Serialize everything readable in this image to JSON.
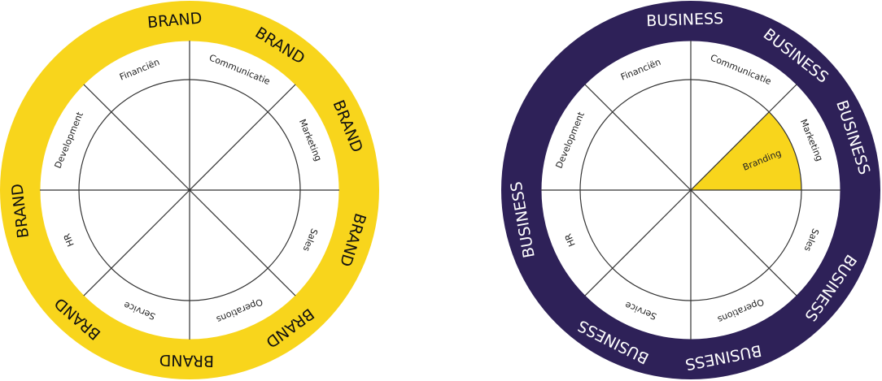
{
  "wheels": [
    {
      "ring_labels": [
        "BRAND",
        "BRAND",
        "BRAND",
        "BRAND",
        "BRAND",
        "BRAND",
        "BRAND",
        "BRAND"
      ],
      "segments": [
        "Communicatie",
        "Marketing",
        "Sales",
        "Operations",
        "Service",
        "HR",
        "Development",
        "Financiën"
      ]
    },
    {
      "ring_labels": [
        "BUSINESS",
        "BUSINESS",
        "BUSINESS",
        "BUSINESS",
        "BUSINESS",
        "BUSINESS",
        "BUSINESS"
      ],
      "segments": [
        "Communicatie",
        "Marketing",
        "Sales",
        "Operations",
        "Service",
        "HR",
        "Development",
        "Financiën"
      ],
      "highlight": "Branding"
    }
  ]
}
